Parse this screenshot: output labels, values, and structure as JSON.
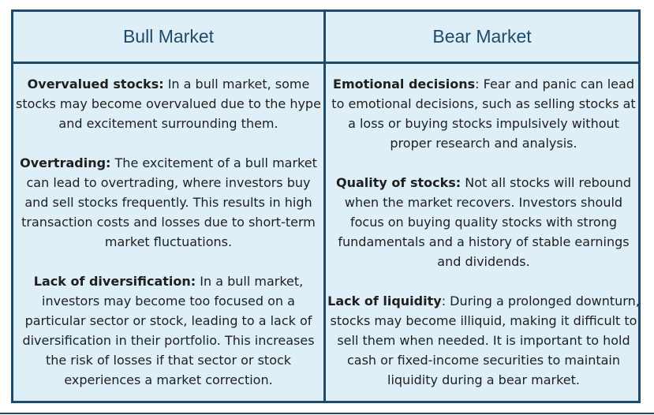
{
  "headers": {
    "left": "Bull Market",
    "right": "Bear Market"
  },
  "bull": [
    {
      "title": "Overvalued stocks:",
      "text": " In a bull market, some stocks may become overvalued due to the hype and excitement surrounding them."
    },
    {
      "title": "Overtrading:",
      "text": " The excitement of a bull market can lead to overtrading, where investors buy and sell stocks frequently. This results in high transaction costs and losses due to short-term market fluctuations."
    },
    {
      "title": "Lack of diversification:",
      "text": " In a bull market, investors may become too focused on a particular sector or stock, leading to a lack of diversification in their portfolio. This increases the risk of losses if that sector or stock experiences a market correction."
    }
  ],
  "bear": [
    {
      "title": "Emotional decisions",
      "text": ": Fear and panic can lead to emotional decisions, such as selling stocks at a loss or buying stocks impulsively without proper research and analysis."
    },
    {
      "title": "Quality of stocks:",
      "text": " Not all stocks will rebound when the market recovers. Investors should focus on buying quality stocks with strong fundamentals and a history of stable earnings and dividends."
    },
    {
      "title": "Lack of liquidity",
      "text": ": During a prolonged downturn, stocks may become illiquid, making it difficult to sell them when needed. It is important to hold cash or fixed-income securities to maintain liquidity during a bear market."
    }
  ],
  "colors": {
    "border": "#1e4a6b",
    "background": "#deeff7",
    "text": "#1f1f1f"
  }
}
